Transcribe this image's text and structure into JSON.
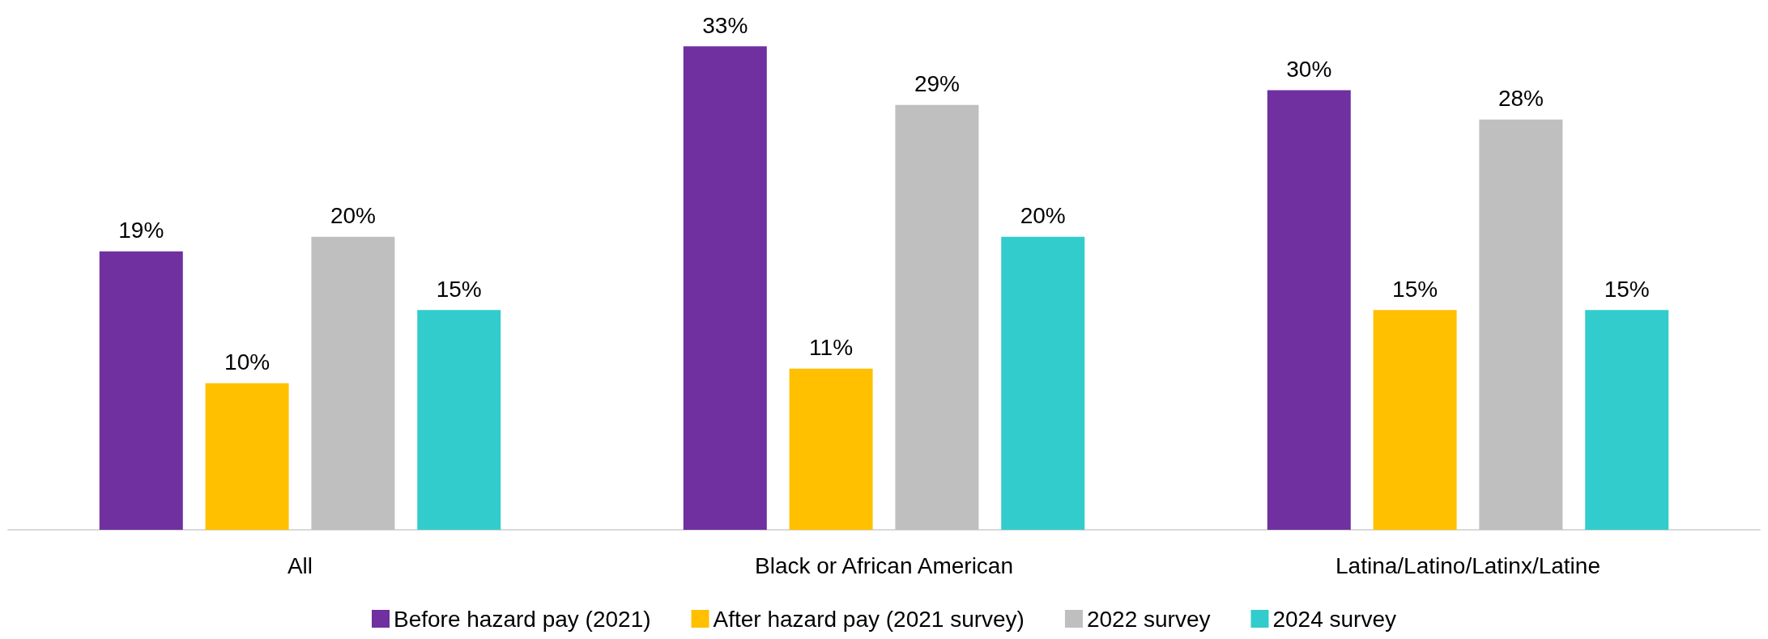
{
  "chart_data": {
    "type": "bar",
    "categories": [
      "All",
      "Black or African American",
      "Latina/Latino/Latinx/Latine"
    ],
    "series": [
      {
        "name": "Before hazard pay (2021)",
        "color": "#7030a0",
        "values": [
          19,
          33,
          30
        ],
        "value_labels": [
          "19%",
          "33%",
          "30%"
        ]
      },
      {
        "name": "After hazard pay (2021 survey)",
        "color": "#ffc000",
        "values": [
          10,
          11,
          15
        ],
        "value_labels": [
          "10%",
          "11%",
          "15%"
        ]
      },
      {
        "name": "2022 survey",
        "color": "#bfbfbf",
        "values": [
          20,
          29,
          28
        ],
        "value_labels": [
          "20%",
          "29%",
          "28%"
        ]
      },
      {
        "name": "2024 survey",
        "color": "#33cccc",
        "values": [
          15,
          20,
          15
        ],
        "value_labels": [
          "15%",
          "20%",
          "15%"
        ]
      }
    ],
    "legend": "bottom",
    "tick_labels": "x"
  }
}
